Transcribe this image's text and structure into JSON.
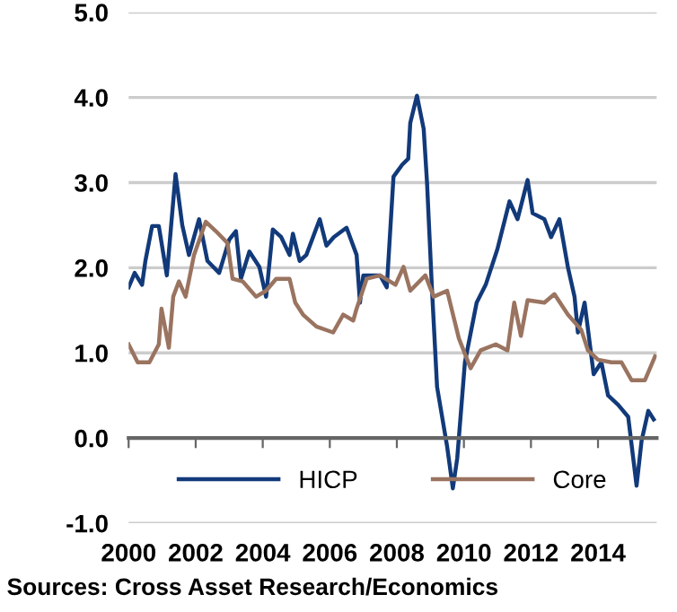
{
  "chart_data": {
    "type": "line",
    "annotations": [
      "Sources: Cross Asset Research/Economics"
    ],
    "xlim": [
      2000,
      2015.75
    ],
    "xticks": [
      2000,
      2002,
      2004,
      2006,
      2008,
      2010,
      2012,
      2014
    ],
    "ylim": [
      -1.0,
      5.0
    ],
    "yticks": [
      {
        "value": -1,
        "label": "-1.0"
      },
      {
        "value": 0,
        "label": "0.0"
      },
      {
        "value": 1,
        "label": "1.0"
      },
      {
        "value": 2,
        "label": "2.0"
      },
      {
        "value": 3,
        "label": "3.0"
      },
      {
        "value": 4,
        "label": "4.0"
      },
      {
        "value": 5,
        "label": "5.0"
      }
    ],
    "grid": "y",
    "legend": "bottom",
    "series": [
      {
        "name": "HICP",
        "color": "#123a7a",
        "x": [
          2000.0,
          2000.18,
          2000.4,
          2000.5,
          2000.7,
          2000.9,
          2001.14,
          2001.4,
          2001.6,
          2001.8,
          2002.1,
          2002.35,
          2002.7,
          2003.0,
          2003.2,
          2003.35,
          2003.6,
          2003.9,
          2004.1,
          2004.3,
          2004.55,
          2004.8,
          2004.9,
          2005.1,
          2005.3,
          2005.7,
          2005.9,
          2006.12,
          2006.5,
          2006.8,
          2006.9,
          2007.0,
          2007.5,
          2007.7,
          2007.9,
          2008.16,
          2008.34,
          2008.4,
          2008.6,
          2008.8,
          2008.9,
          2009.05,
          2009.2,
          2009.5,
          2009.67,
          2009.8,
          2010.03,
          2010.38,
          2010.65,
          2011.0,
          2011.36,
          2011.6,
          2011.9,
          2012.05,
          2012.4,
          2012.6,
          2012.85,
          2013.1,
          2013.3,
          2013.4,
          2013.6,
          2013.87,
          2014.1,
          2014.3,
          2014.6,
          2014.9,
          2015.15,
          2015.3,
          2015.5,
          2015.66
        ],
        "values": [
          1.77,
          1.94,
          1.8,
          2.08,
          2.49,
          2.49,
          1.91,
          3.1,
          2.5,
          2.15,
          2.57,
          2.08,
          1.94,
          2.33,
          2.43,
          1.87,
          2.19,
          2.01,
          1.66,
          2.45,
          2.36,
          2.15,
          2.4,
          2.08,
          2.15,
          2.57,
          2.26,
          2.36,
          2.47,
          2.15,
          1.59,
          1.91,
          1.91,
          1.77,
          3.07,
          3.21,
          3.28,
          3.7,
          4.02,
          3.63,
          3.0,
          1.73,
          0.6,
          -0.1,
          -0.59,
          -0.24,
          0.89,
          1.59,
          1.8,
          2.22,
          2.78,
          2.57,
          3.03,
          2.64,
          2.57,
          2.36,
          2.57,
          2.01,
          1.66,
          1.24,
          1.59,
          0.75,
          0.89,
          0.5,
          0.39,
          0.25,
          -0.56,
          -0.03,
          0.32,
          0.22
        ]
      },
      {
        "name": "Core",
        "color": "#9a7460",
        "x": [
          2000.0,
          2000.27,
          2000.62,
          2000.9,
          2000.98,
          2001.2,
          2001.33,
          2001.5,
          2001.7,
          2001.95,
          2002.3,
          2002.6,
          2002.95,
          2003.1,
          2003.4,
          2003.8,
          2004.1,
          2004.4,
          2004.8,
          2004.97,
          2005.2,
          2005.6,
          2006.1,
          2006.4,
          2006.7,
          2006.8,
          2007.1,
          2007.5,
          2007.96,
          2008.2,
          2008.4,
          2008.85,
          2009.1,
          2009.5,
          2009.85,
          2010.2,
          2010.5,
          2010.95,
          2011.3,
          2011.5,
          2011.7,
          2011.9,
          2012.4,
          2012.7,
          2013.1,
          2013.5,
          2013.7,
          2014.0,
          2014.4,
          2014.7,
          2015.0,
          2015.4,
          2015.7
        ],
        "values": [
          1.1,
          0.89,
          0.89,
          1.1,
          1.52,
          1.06,
          1.66,
          1.84,
          1.66,
          2.15,
          2.54,
          2.43,
          2.29,
          1.87,
          1.84,
          1.66,
          1.73,
          1.87,
          1.87,
          1.59,
          1.45,
          1.31,
          1.24,
          1.45,
          1.38,
          1.52,
          1.87,
          1.91,
          1.8,
          2.01,
          1.73,
          1.91,
          1.66,
          1.73,
          1.17,
          0.82,
          1.03,
          1.1,
          1.03,
          1.59,
          1.2,
          1.62,
          1.59,
          1.69,
          1.45,
          1.27,
          1.03,
          0.92,
          0.89,
          0.89,
          0.68,
          0.68,
          0.96
        ]
      }
    ]
  }
}
